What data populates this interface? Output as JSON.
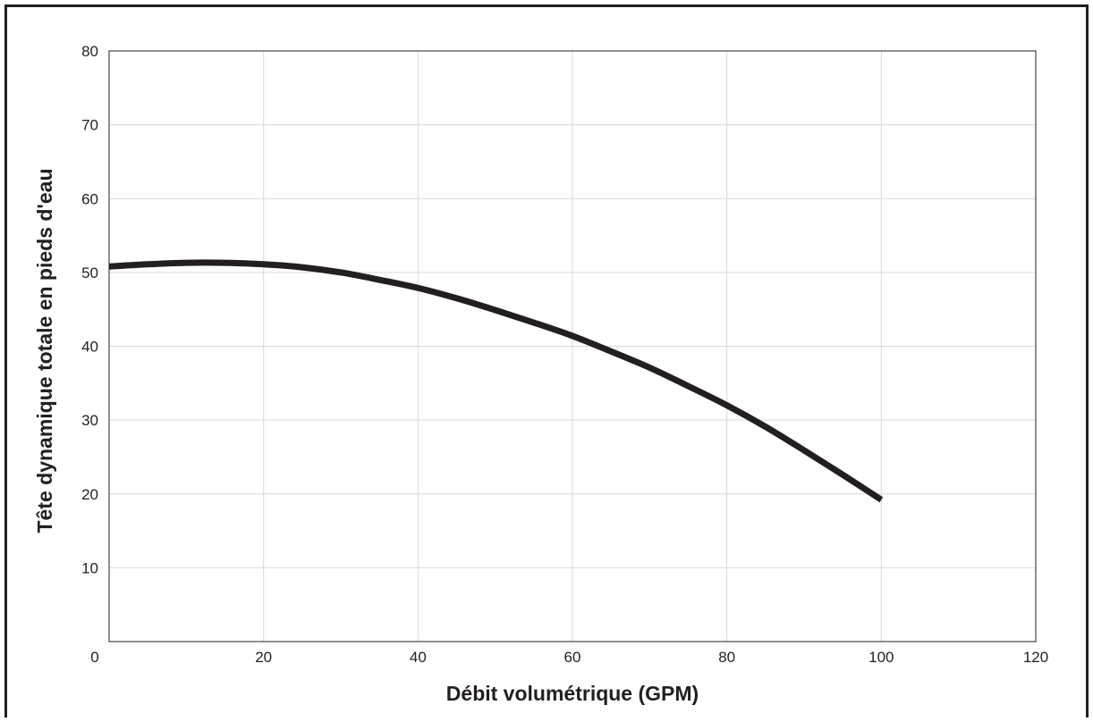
{
  "chart_data": {
    "type": "line",
    "title": "",
    "xlabel": "Débit volumétrique (GPM)",
    "ylabel": "Tête dynamique totale en pieds d'eau",
    "xlim": [
      0,
      120
    ],
    "ylim": [
      0,
      80
    ],
    "x_ticks": [
      0,
      20,
      40,
      60,
      80,
      100,
      120
    ],
    "y_ticks": [
      0,
      10,
      20,
      30,
      40,
      50,
      60,
      70,
      80
    ],
    "grid": true,
    "legend": "none",
    "series": [
      {
        "color": "#231f20",
        "x": [
          0,
          5,
          10,
          15,
          20,
          25,
          30,
          35,
          40,
          45,
          50,
          55,
          60,
          65,
          70,
          75,
          80,
          85,
          90,
          95,
          100
        ],
        "y": [
          50.8,
          51.1,
          51.3,
          51.3,
          51.1,
          50.7,
          50.0,
          49.0,
          47.9,
          46.5,
          44.9,
          43.2,
          41.4,
          39.3,
          37.1,
          34.6,
          32.0,
          29.1,
          25.9,
          22.6,
          19.2
        ]
      }
    ]
  }
}
